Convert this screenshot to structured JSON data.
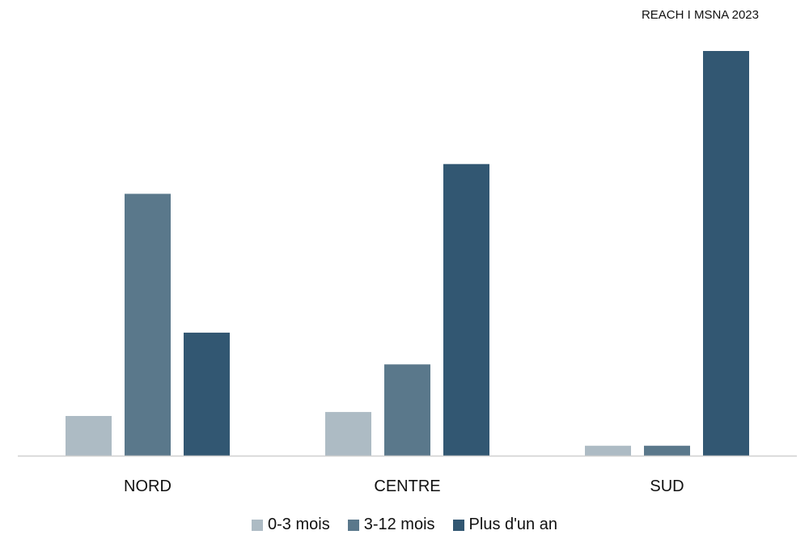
{
  "source": "REACH I MSNA 2023",
  "colors": [
    "#adbbc4",
    "#5a788b",
    "#325772"
  ],
  "chart_data": {
    "type": "bar",
    "title": "",
    "xlabel": "",
    "ylabel": "",
    "categories": [
      "NORD",
      "CENTRE",
      "SUD"
    ],
    "series": [
      {
        "name": "0-3 mois",
        "values": [
          10,
          11,
          2.5
        ]
      },
      {
        "name": "3-12 mois",
        "values": [
          66,
          23,
          2.5
        ]
      },
      {
        "name": "Plus d'un an",
        "values": [
          31,
          73.5,
          102
        ]
      }
    ],
    "ylim": [
      0,
      102
    ],
    "grid": false,
    "legend": "bottom"
  }
}
